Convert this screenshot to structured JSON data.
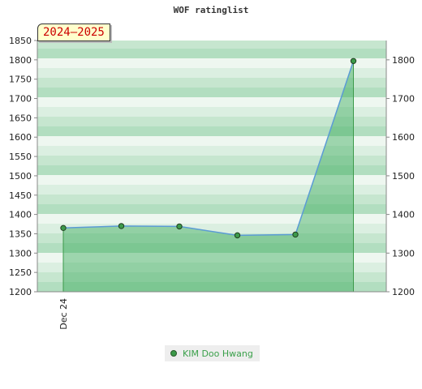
{
  "chart_data": {
    "type": "area",
    "title": "WOF ratinglist",
    "badge": "2024–2025",
    "x": [
      "",
      "",
      "",
      "",
      "",
      ""
    ],
    "x_tick_labels": [
      "Dec 24",
      "",
      "",
      "",
      "",
      ""
    ],
    "series": [
      {
        "name": "KIM Doo Hwang",
        "values": [
          1365,
          1370,
          1369,
          1346,
          1348,
          1797
        ]
      }
    ],
    "ylim": [
      1200,
      1850
    ],
    "left_ticks": [
      1200,
      1250,
      1300,
      1350,
      1400,
      1450,
      1500,
      1550,
      1600,
      1650,
      1700,
      1750,
      1800,
      1850
    ],
    "right_ticks": [
      1200,
      1300,
      1400,
      1500,
      1600,
      1700,
      1800
    ],
    "legend_position": "bottom-center",
    "colors": {
      "line": "#5b9bd5",
      "fill": "#3aaa5a",
      "point": "#3c9a4a",
      "badge_text": "#cc0000"
    }
  }
}
